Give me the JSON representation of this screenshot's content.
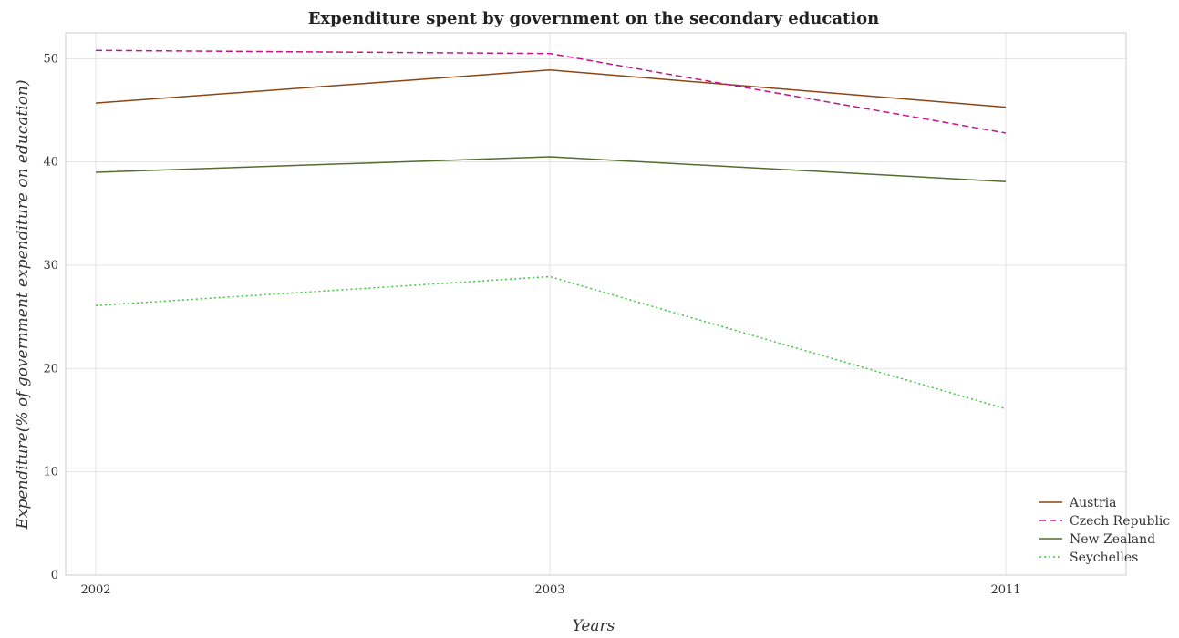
{
  "chart_data": {
    "type": "line",
    "title": "Expenditure spent by government on the secondary education",
    "xlabel": "Years",
    "ylabel": "Expenditure(% of government expenditure on education)",
    "categories": [
      "2002",
      "2003",
      "2011"
    ],
    "ylim": [
      0,
      52.5
    ],
    "yticks": [
      0,
      10,
      20,
      30,
      40,
      50
    ],
    "ytick_labels": [
      "0",
      "10",
      "20",
      "30",
      "40",
      "50"
    ],
    "grid": true,
    "legend_position": "bottom-right",
    "series": [
      {
        "name": "Austria",
        "color": "#8b4513",
        "dash": "solid",
        "values": [
          45.7,
          48.9,
          45.3
        ]
      },
      {
        "name": "Czech Republic",
        "color": "#c71585",
        "dash": "dashed",
        "values": [
          50.8,
          50.5,
          42.8
        ]
      },
      {
        "name": "New Zealand",
        "color": "#556b2f",
        "dash": "solid",
        "values": [
          39.0,
          40.5,
          38.1
        ]
      },
      {
        "name": "Seychelles",
        "color": "#32cd32",
        "dash": "dotted",
        "values": [
          26.1,
          28.9,
          16.1
        ]
      }
    ]
  }
}
